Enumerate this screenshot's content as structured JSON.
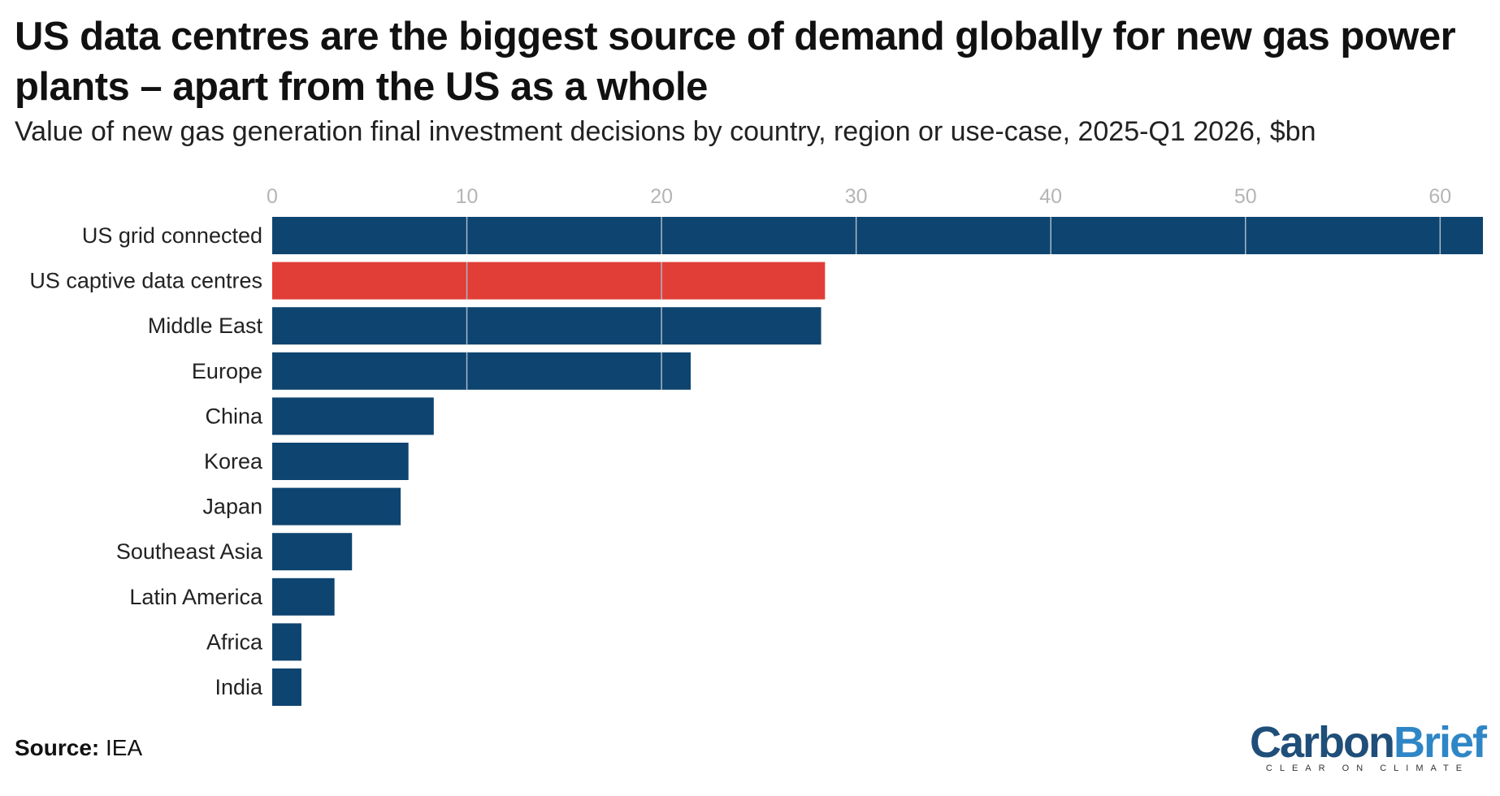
{
  "title": "US data centres are the biggest source of demand globally for new gas power plants – apart from the US as a whole",
  "subtitle": "Value of new gas generation final investment decisions by country, region or use-case, 2025-Q1 2026, $bn",
  "source": {
    "label": "Source:",
    "text": "IEA"
  },
  "logo": {
    "carbon": "Carbon",
    "brief": "Brief",
    "tagline": "CLEAR ON CLIMATE"
  },
  "colors": {
    "default_bar": "#0e4470",
    "highlight_bar": "#e03e36",
    "grid": "#a9b9c9"
  },
  "chart_data": {
    "type": "bar",
    "orientation": "horizontal",
    "categories": [
      "US grid connected",
      "US captive data centres",
      "Middle East",
      "Europe",
      "China",
      "Korea",
      "Japan",
      "Southeast Asia",
      "Latin America",
      "Africa",
      "India"
    ],
    "values": [
      62.2,
      28.4,
      28.2,
      21.5,
      8.3,
      7.0,
      6.6,
      4.1,
      3.2,
      1.5,
      1.5
    ],
    "highlight": [
      "US captive data centres"
    ],
    "xlim": [
      0,
      62.2
    ],
    "ticks": [
      0,
      10,
      20,
      30,
      40,
      50,
      60
    ],
    "title": "",
    "xlabel": "",
    "ylabel": "",
    "grid": true,
    "legend": "none"
  }
}
